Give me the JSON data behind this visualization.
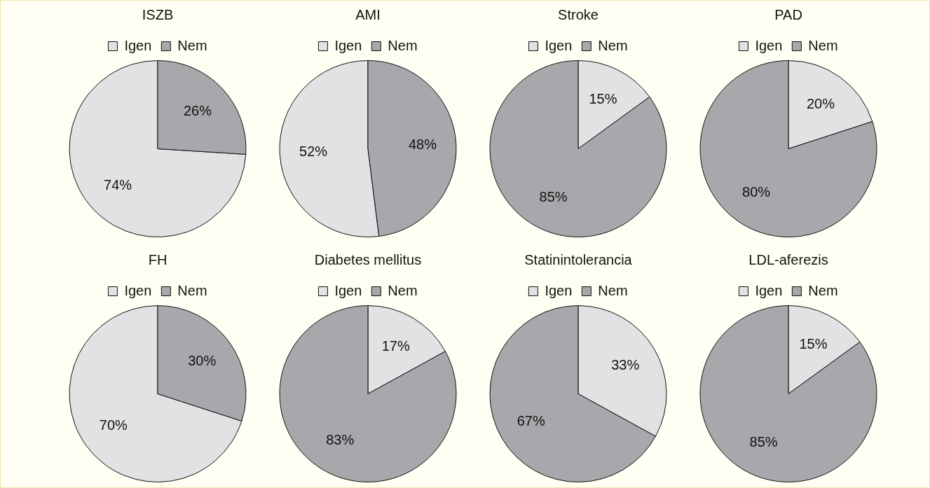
{
  "chart_data": [
    {
      "type": "pie",
      "title": "ISZB",
      "categories": [
        "Igen",
        "Nem"
      ],
      "values": [
        74,
        26
      ],
      "colors": [
        "#e1e2e4",
        "#a7a8ab"
      ],
      "value_labels": [
        "74%",
        "26%"
      ],
      "legend": "top"
    },
    {
      "type": "pie",
      "title": "AMI",
      "categories": [
        "Igen",
        "Nem"
      ],
      "values": [
        52,
        48
      ],
      "colors": [
        "#e1e2e4",
        "#a7a8ab"
      ],
      "value_labels": [
        "52%",
        "48%"
      ],
      "legend": "top"
    },
    {
      "type": "pie",
      "title": "Stroke",
      "categories": [
        "Igen",
        "Nem"
      ],
      "values": [
        15,
        85
      ],
      "colors": [
        "#e1e2e4",
        "#a7a8ab"
      ],
      "value_labels": [
        "15%",
        "85%"
      ],
      "legend": "top"
    },
    {
      "type": "pie",
      "title": "PAD",
      "categories": [
        "Igen",
        "Nem"
      ],
      "values": [
        20,
        80
      ],
      "colors": [
        "#e1e2e4",
        "#a7a8ab"
      ],
      "value_labels": [
        "20%",
        "80%"
      ],
      "legend": "top"
    },
    {
      "type": "pie",
      "title": "FH",
      "categories": [
        "Igen",
        "Nem"
      ],
      "values": [
        70,
        30
      ],
      "colors": [
        "#e1e2e4",
        "#a7a8ab"
      ],
      "value_labels": [
        "70%",
        "30%"
      ],
      "legend": "top"
    },
    {
      "type": "pie",
      "title": "Diabetes mellitus",
      "categories": [
        "Igen",
        "Nem"
      ],
      "values": [
        17,
        83
      ],
      "colors": [
        "#e1e2e4",
        "#a7a8ab"
      ],
      "value_labels": [
        "17%",
        "83%"
      ],
      "legend": "top"
    },
    {
      "type": "pie",
      "title": "Statinintolerancia",
      "categories": [
        "Igen",
        "Nem"
      ],
      "values": [
        33,
        67
      ],
      "colors": [
        "#e1e2e4",
        "#a7a8ab"
      ],
      "value_labels": [
        "33%",
        "67%"
      ],
      "legend": "top"
    },
    {
      "type": "pie",
      "title": "LDL-aferezis",
      "categories": [
        "Igen",
        "Nem"
      ],
      "values": [
        15,
        85
      ],
      "colors": [
        "#e1e2e4",
        "#a7a8ab"
      ],
      "value_labels": [
        "15%",
        "85%"
      ],
      "legend": "top"
    }
  ]
}
